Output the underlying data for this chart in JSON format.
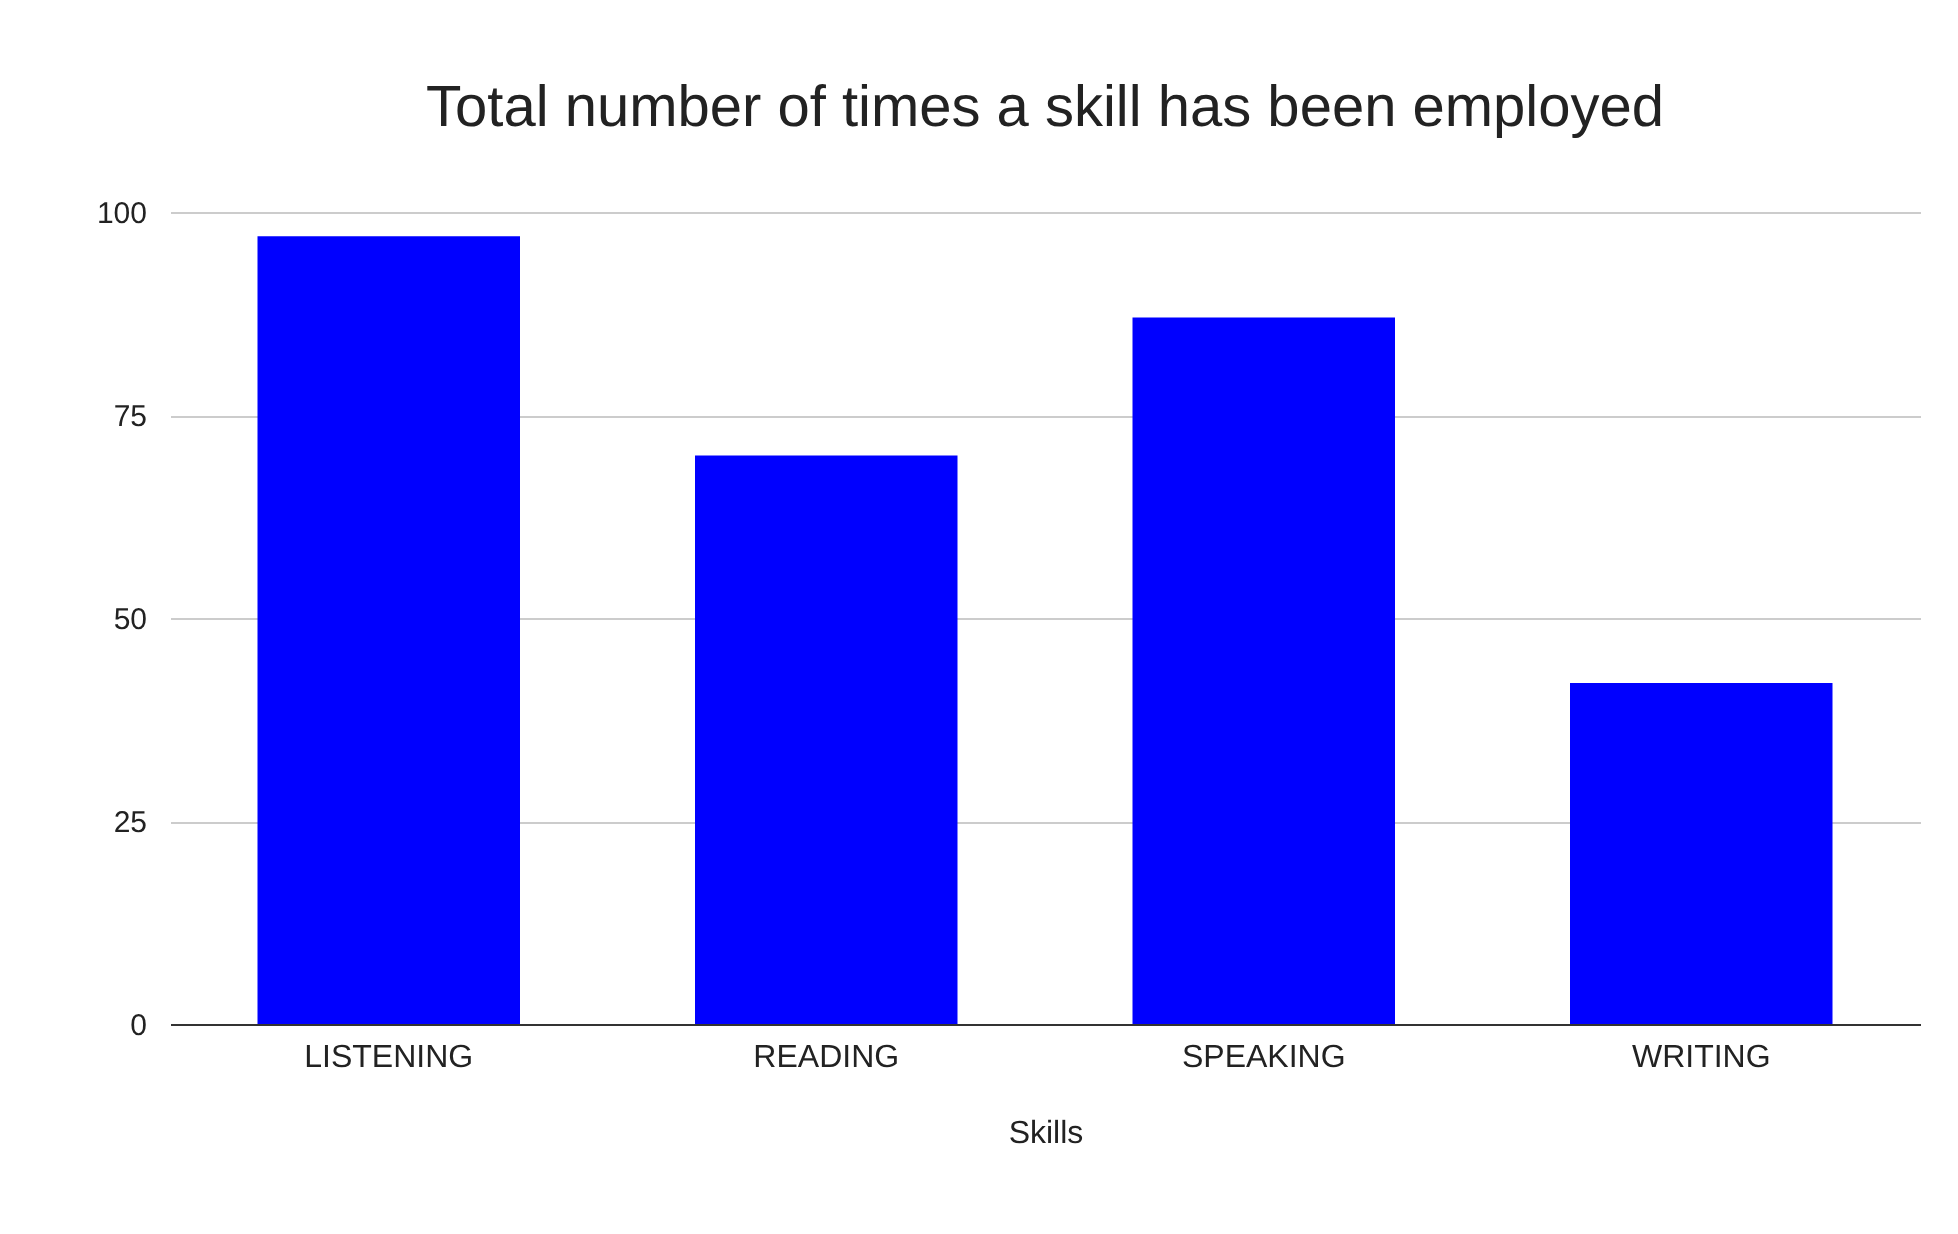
{
  "chart_data": {
    "type": "bar",
    "title": "Total number of times a skill has been employed",
    "xlabel": "Skills",
    "categories": [
      "LISTENING",
      "READING",
      "SPEAKING",
      "WRITING"
    ],
    "values": [
      97,
      70,
      87,
      42
    ],
    "color": "#0000ff",
    "ylim": [
      0,
      100
    ],
    "yticks": [
      0,
      25,
      50,
      75,
      100
    ],
    "grid": "y"
  }
}
